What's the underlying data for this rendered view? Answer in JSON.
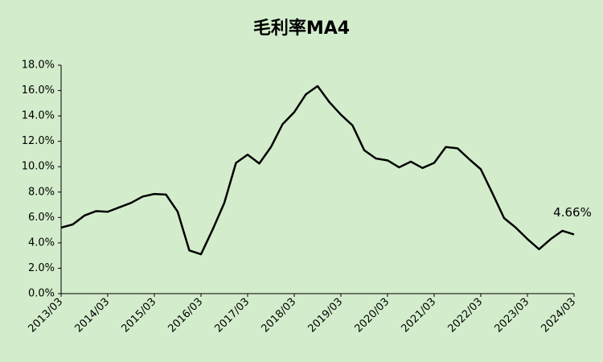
{
  "chart_data": {
    "type": "line",
    "title": "毛利率MA4",
    "categories": [
      "2013/03",
      null,
      null,
      null,
      "2014/03",
      null,
      null,
      null,
      "2015/03",
      null,
      null,
      null,
      "2016/03",
      null,
      null,
      null,
      "2017/03",
      null,
      null,
      null,
      "2018/03",
      null,
      null,
      null,
      "2019/03",
      null,
      null,
      null,
      "2020/03",
      null,
      null,
      null,
      "2021/03",
      null,
      null,
      null,
      "2022/03",
      null,
      null,
      null,
      "2023/03",
      null,
      null,
      null,
      "2024/03"
    ],
    "series": [
      {
        "name": "毛利率MA4",
        "color": "#000000",
        "values": [
          5.2,
          5.45,
          6.15,
          6.5,
          6.45,
          6.8,
          7.15,
          7.65,
          7.85,
          7.8,
          6.45,
          3.4,
          3.1,
          5.05,
          7.15,
          10.3,
          10.95,
          10.25,
          11.55,
          13.35,
          14.3,
          15.7,
          16.35,
          15.1,
          14.1,
          13.25,
          11.3,
          10.65,
          10.5,
          9.95,
          10.4,
          9.9,
          10.3,
          11.55,
          11.45,
          10.6,
          9.8,
          7.9,
          5.95,
          5.2,
          4.3,
          3.5,
          4.3,
          4.95,
          4.66
        ],
        "value_labels": [
          null,
          null,
          null,
          null,
          null,
          null,
          null,
          null,
          null,
          null,
          null,
          null,
          null,
          null,
          null,
          null,
          null,
          null,
          null,
          null,
          null,
          null,
          null,
          null,
          null,
          null,
          null,
          null,
          null,
          null,
          null,
          null,
          null,
          null,
          null,
          null,
          null,
          null,
          null,
          null,
          null,
          null,
          null,
          null,
          "4.66%"
        ]
      }
    ],
    "ylim": [
      0,
      18
    ],
    "yticks": [
      {
        "value": 0,
        "label": "0.0%"
      },
      {
        "value": 2,
        "label": "2.0%"
      },
      {
        "value": 4,
        "label": "4.0%"
      },
      {
        "value": 6,
        "label": "6.0%"
      },
      {
        "value": 8,
        "label": "8.0%"
      },
      {
        "value": 10,
        "label": "10.0%"
      },
      {
        "value": 12,
        "label": "12.0%"
      },
      {
        "value": 14,
        "label": "14.0%"
      },
      {
        "value": 16,
        "label": "16.0%"
      },
      {
        "value": 18,
        "label": "18.0%"
      }
    ],
    "grid": false
  }
}
